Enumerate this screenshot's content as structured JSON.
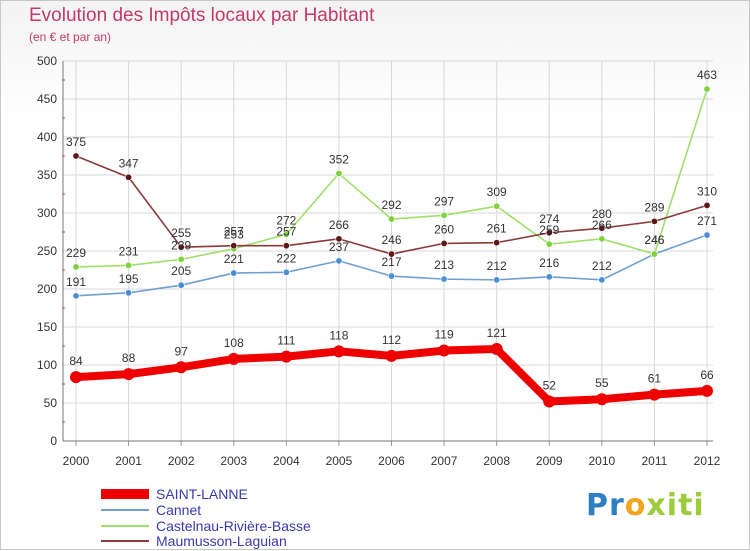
{
  "header": {
    "title": "Evolution des Impôts locaux par Habitant",
    "subtitle": "(en € et par an)"
  },
  "logo": {
    "letters": [
      "P",
      "r",
      "o",
      "x",
      "i",
      "t",
      "i"
    ],
    "colors": [
      "#2e7fc2",
      "#2e7fc2",
      "#f2a51f",
      "#9ccb3b",
      "#9ccb3b",
      "#9ccb3b",
      "#9ccb3b"
    ]
  },
  "chart_data": {
    "type": "line",
    "title": "Evolution des Impôts locaux par Habitant",
    "subtitle": "(en € et par an)",
    "xlabel": "",
    "ylabel": "",
    "x": [
      "2000",
      "2001",
      "2002",
      "2003",
      "2004",
      "2005",
      "2006",
      "2007",
      "2008",
      "2009",
      "2010",
      "2011",
      "2012"
    ],
    "ylim": [
      0,
      500
    ],
    "yticks": [
      "0",
      "50",
      "100",
      "150",
      "200",
      "250",
      "300",
      "350",
      "400",
      "450",
      "500"
    ],
    "grid": true,
    "legend_position": "bottom-left",
    "series": [
      {
        "name": "SAINT-LANNE",
        "color": "#ee0000",
        "width": "thick",
        "values": [
          84,
          88,
          97,
          108,
          111,
          118,
          112,
          119,
          121,
          52,
          55,
          61,
          66
        ]
      },
      {
        "name": "Cannet",
        "color": "#6e9fcf",
        "point_color": "#4a8fd6",
        "width": "thin",
        "values": [
          191,
          195,
          205,
          221,
          222,
          237,
          217,
          213,
          212,
          216,
          212,
          246,
          271
        ]
      },
      {
        "name": "Castelnau-Rivière-Basse",
        "color": "#9ee06a",
        "point_color": "#7dd23e",
        "width": "thin",
        "values": [
          229,
          231,
          239,
          253,
          272,
          352,
          292,
          297,
          309,
          259,
          266,
          246,
          463
        ]
      },
      {
        "name": "Maumusson-Laguian",
        "color": "#8a3a3a",
        "point_color": "#5c1717",
        "width": "thin",
        "values": [
          375,
          347,
          255,
          257,
          257,
          266,
          246,
          260,
          261,
          274,
          280,
          289,
          310
        ]
      }
    ]
  }
}
